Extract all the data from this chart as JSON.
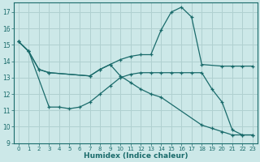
{
  "xlabel": "Humidex (Indice chaleur)",
  "xlim": [
    -0.5,
    23.5
  ],
  "ylim": [
    9,
    17.6
  ],
  "yticks": [
    9,
    10,
    11,
    12,
    13,
    14,
    15,
    16,
    17
  ],
  "xticks": [
    0,
    1,
    2,
    3,
    4,
    5,
    6,
    7,
    8,
    9,
    10,
    11,
    12,
    13,
    14,
    15,
    16,
    17,
    18,
    19,
    20,
    21,
    22,
    23
  ],
  "bg_color": "#cce8e8",
  "grid_color": "#b0d0d0",
  "line_color": "#1a6b6b",
  "curve1_x": [
    0,
    1,
    2,
    3,
    7,
    8,
    9,
    10,
    11,
    12,
    13,
    14,
    15,
    16,
    17,
    18,
    20,
    21,
    22,
    23
  ],
  "curve1_y": [
    15.2,
    14.6,
    13.5,
    13.3,
    13.1,
    13.5,
    13.8,
    14.1,
    14.3,
    14.4,
    14.4,
    15.9,
    17.0,
    17.3,
    16.7,
    13.8,
    13.7,
    13.7,
    13.7,
    13.7
  ],
  "curve2_x": [
    0,
    1,
    2,
    3,
    7,
    8,
    9,
    10,
    11,
    12,
    13,
    14,
    18,
    19,
    20,
    21,
    22,
    23
  ],
  "curve2_y": [
    15.2,
    14.6,
    13.5,
    13.3,
    13.1,
    13.5,
    13.8,
    13.1,
    12.7,
    12.3,
    12.0,
    11.8,
    10.1,
    9.9,
    9.7,
    9.5,
    9.5,
    9.5
  ],
  "curve3_x": [
    0,
    1,
    3,
    4,
    5,
    6,
    7,
    8,
    9,
    10,
    11,
    12,
    13,
    14,
    15,
    16,
    17,
    18,
    19,
    20,
    21,
    22,
    23
  ],
  "curve3_y": [
    15.2,
    14.6,
    11.2,
    11.2,
    11.1,
    11.2,
    11.5,
    12.0,
    12.5,
    13.0,
    13.2,
    13.3,
    13.3,
    13.3,
    13.3,
    13.3,
    13.3,
    13.3,
    12.3,
    11.5,
    9.8,
    9.5,
    9.5
  ]
}
